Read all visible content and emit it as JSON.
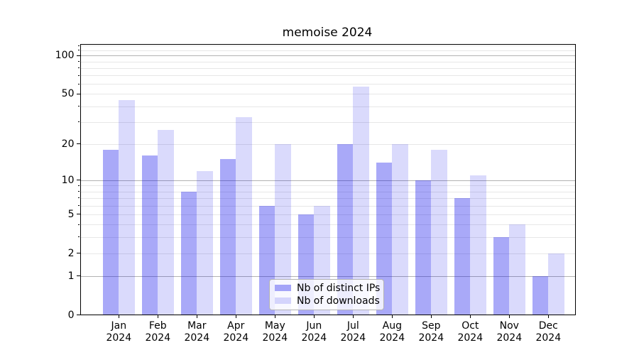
{
  "title": "memoise 2024",
  "chart_data": {
    "type": "bar",
    "title": "memoise 2024",
    "categories": [
      "Jan",
      "Feb",
      "Mar",
      "Apr",
      "May",
      "Jun",
      "Jul",
      "Aug",
      "Sep",
      "Oct",
      "Nov",
      "Dec"
    ],
    "year_label": "2024",
    "series": [
      {
        "name": "Nb of distinct IPs",
        "values": [
          18,
          16,
          8,
          15,
          6,
          5,
          20,
          14,
          10,
          7,
          3,
          1
        ],
        "color": "rgba(10,10,235,0.35)"
      },
      {
        "name": "Nb of downloads",
        "values": [
          45,
          26,
          12,
          33,
          20,
          6,
          57,
          20,
          18,
          11,
          4,
          2
        ],
        "color": "rgba(10,10,235,0.15)"
      }
    ],
    "xlabel": "",
    "ylabel": "",
    "yscale": "log1p",
    "ylim": [
      0,
      124
    ],
    "ytick_values": [
      0,
      1,
      2,
      5,
      10,
      20,
      50,
      100
    ],
    "ytick_labels": [
      "0",
      "1",
      "2",
      "5",
      "10",
      "20",
      "50",
      "100"
    ],
    "major_grid_values": [
      1,
      10,
      100
    ],
    "minor_grid_values": [
      2,
      3,
      4,
      5,
      6,
      7,
      8,
      9,
      20,
      30,
      40,
      50,
      60,
      70,
      80,
      90,
      110,
      120
    ],
    "grid": true,
    "legend_position": "lower center",
    "legend_labels": [
      "Nb of distinct IPs",
      "Nb of downloads"
    ],
    "colors": {
      "bar_distinct_ips": "rgba(10,10,235,0.35)",
      "bar_downloads": "rgba(10,10,235,0.15)",
      "major_grid": "#b2b2b2",
      "minor_grid": "#e7e7e7",
      "axis": "#000000",
      "text": "#000000"
    }
  }
}
